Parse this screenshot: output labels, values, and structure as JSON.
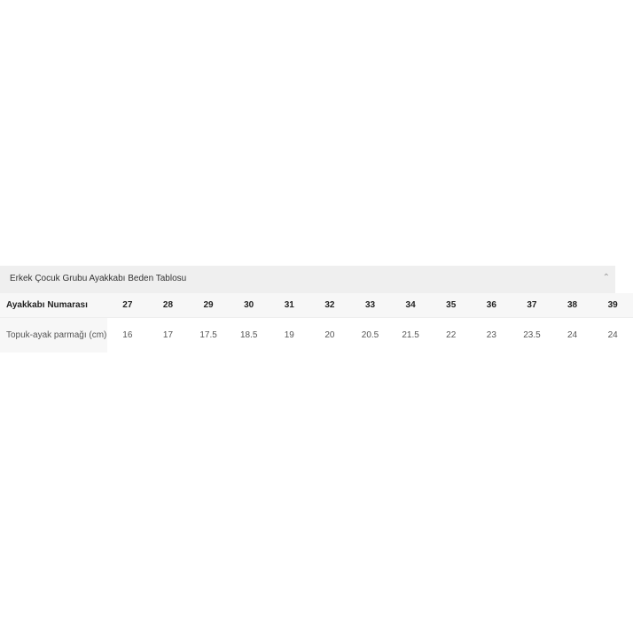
{
  "accordion": {
    "title": "Erkek Çocuk Grubu Ayakkabı Beden Tablosu",
    "toggle_icon": "chevron-up-icon"
  },
  "table": {
    "row_headers": [
      "Ayakkabı Numarası",
      "Topuk-ayak parmağı (cm)"
    ],
    "sizes": [
      "27",
      "28",
      "29",
      "30",
      "31",
      "32",
      "33",
      "34",
      "35",
      "36",
      "37",
      "38",
      "39"
    ],
    "lengths": [
      "16",
      "17",
      "17.5",
      "18.5",
      "19",
      "20",
      "20.5",
      "21.5",
      "22",
      "23",
      "23.5",
      "24",
      "24"
    ]
  }
}
